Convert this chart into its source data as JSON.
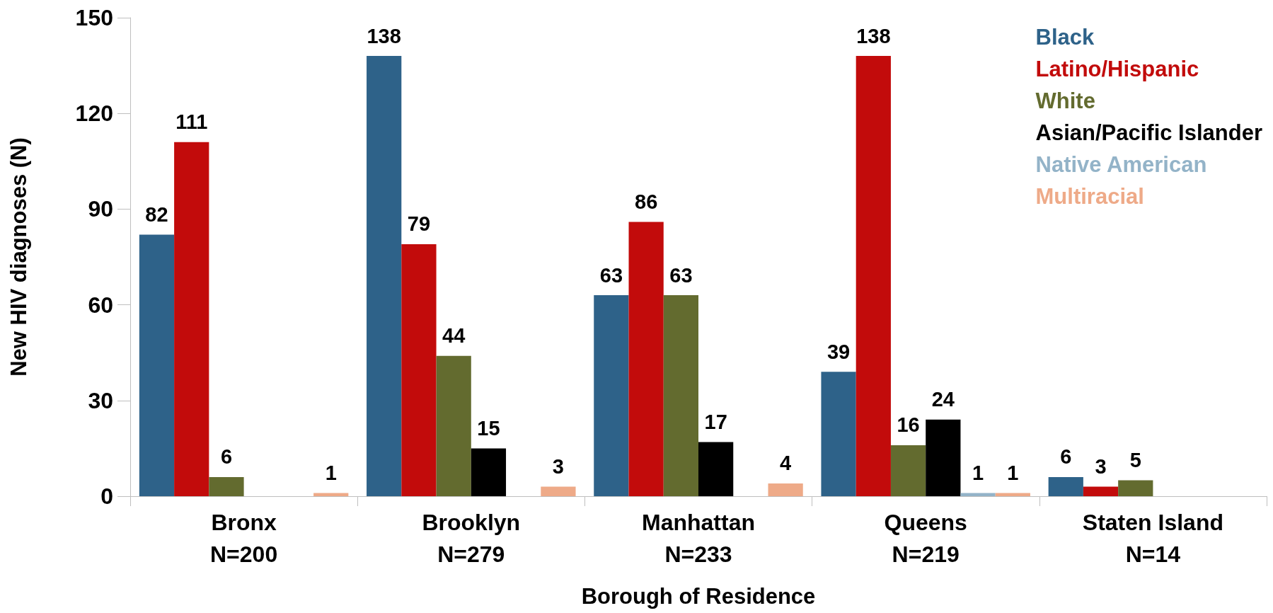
{
  "chart_data": {
    "type": "bar",
    "xlabel": "Borough of Residence",
    "ylabel": "New HIV diagnoses (N)",
    "categories": [
      "Bronx\nN=200",
      "Brooklyn\nN=279",
      "Manhattan\nN=233",
      "Queens\nN=219",
      "Staten Island\nN=14"
    ],
    "series": [
      {
        "name": "Black",
        "color": "#2e6289",
        "values": [
          82,
          138,
          63,
          39,
          6
        ]
      },
      {
        "name": "Latino/Hispanic",
        "color": "#c20b0b",
        "values": [
          111,
          79,
          86,
          138,
          3
        ]
      },
      {
        "name": "White",
        "color": "#636b2f",
        "values": [
          6,
          44,
          63,
          16,
          5
        ]
      },
      {
        "name": "Asian/Pacific Islander",
        "color": "#000000",
        "values": [
          null,
          15,
          17,
          24,
          null
        ]
      },
      {
        "name": "Native American",
        "color": "#93b3c8",
        "values": [
          null,
          null,
          null,
          1,
          null
        ]
      },
      {
        "name": "Multiracial",
        "color": "#eeaa88",
        "values": [
          1,
          3,
          4,
          1,
          null
        ]
      }
    ],
    "ylim": [
      0,
      150
    ],
    "yticks": [
      0,
      30,
      60,
      90,
      120,
      150
    ],
    "grid": false,
    "legend": "top right",
    "data_labels": true
  }
}
